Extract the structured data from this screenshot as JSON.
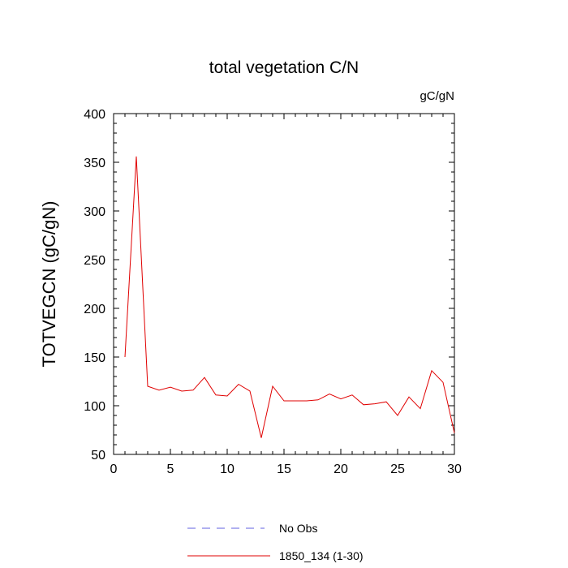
{
  "chart_data": {
    "type": "line",
    "title": "total vegetation C/N",
    "units_label": "gC/gN",
    "ylabel": "TOTVEGCN  (gC/gN)",
    "xlabel": "",
    "xlim": [
      0,
      30
    ],
    "ylim": [
      50,
      400
    ],
    "x_ticks": [
      0,
      5,
      10,
      15,
      20,
      25,
      30
    ],
    "y_ticks": [
      50,
      100,
      150,
      200,
      250,
      300,
      350,
      400
    ],
    "grid": false,
    "legend_position": "bottom-center",
    "series": [
      {
        "name": "No Obs",
        "color": "#6060e0",
        "dash": "dashed",
        "x": [],
        "values": []
      },
      {
        "name": "1850_134 (1-30)",
        "color": "#e00000",
        "dash": "solid",
        "x": [
          1,
          2,
          3,
          4,
          5,
          6,
          7,
          8,
          9,
          10,
          11,
          12,
          13,
          14,
          15,
          16,
          17,
          18,
          19,
          20,
          21,
          22,
          23,
          24,
          25,
          26,
          27,
          28,
          29,
          30
        ],
        "values": [
          150,
          356,
          120,
          116,
          119,
          115,
          116,
          129,
          111,
          110,
          122,
          115,
          67,
          120,
          105,
          105,
          105,
          106,
          112,
          107,
          111,
          101,
          102,
          104,
          90,
          109,
          97,
          136,
          124,
          72
        ]
      }
    ]
  }
}
